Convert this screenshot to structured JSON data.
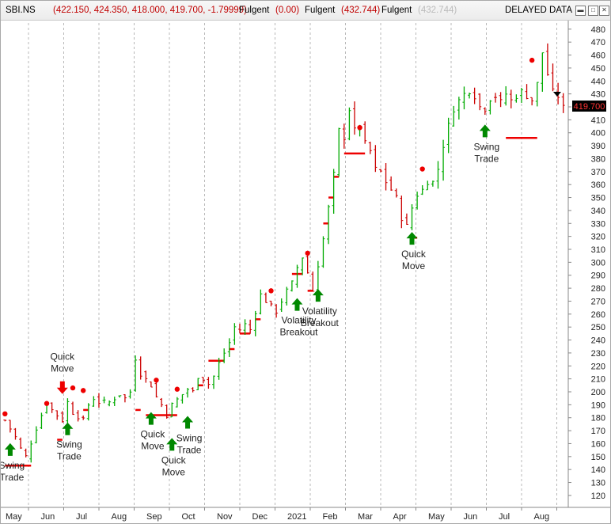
{
  "header": {
    "symbol": "SBI.NS",
    "ohlc": "(422.150, 424.350, 418.000, 419.700, -1.79999)",
    "ind1_name": "Fulgent",
    "ind1_value": "(0.00)",
    "ind2_name": "Fulgent",
    "ind2_value": "(432.744)",
    "ind3_name": "Fulgent",
    "ind3_value": "(432.744)",
    "delayed": "DELAYED DATA",
    "colors": {
      "symbol": "#000000",
      "ohlc": "#c00000",
      "ind2": "#c00000",
      "ind3": "#bbbbbb"
    }
  },
  "window_controls": {
    "minimize_icon": "minimize-icon",
    "maximize_icon": "maximize-icon",
    "close_icon": "close-icon"
  },
  "chart_data": {
    "type": "ohlc",
    "title": "SBI.NS",
    "last_price_label": "419.700",
    "y_ticks": [
      480,
      470,
      460,
      450,
      440,
      430,
      420,
      410,
      400,
      390,
      380,
      370,
      360,
      350,
      340,
      330,
      320,
      310,
      300,
      290,
      280,
      270,
      260,
      250,
      240,
      230,
      220,
      210,
      200,
      190,
      180,
      170,
      160,
      150,
      140,
      130,
      120
    ],
    "ylim": [
      112,
      486
    ],
    "x_labels": [
      "May",
      "Jun",
      "Jul",
      "Aug",
      "Sep",
      "Oct",
      "Nov",
      "Dec",
      "2021",
      "Feb",
      "Mar",
      "Apr",
      "May",
      "Jun",
      "Jul",
      "Aug"
    ],
    "grid": "vertical dashed",
    "colors": {
      "up": "#00aa00",
      "down": "#cc0000",
      "buy_arrow": "#008800",
      "sell_arrow": "#ee0000",
      "stop": "#ee0000",
      "last_bg": "#000000",
      "last_text": "#ff3333"
    },
    "series": [
      {
        "name": "price",
        "points": [
          [
            0,
            178
          ],
          [
            2,
            165
          ],
          [
            3,
            156
          ],
          [
            4,
            150
          ],
          [
            6,
            172
          ],
          [
            8,
            192
          ],
          [
            9,
            186
          ],
          [
            11,
            178
          ],
          [
            12,
            192
          ],
          [
            13,
            184
          ],
          [
            15,
            178
          ],
          [
            16,
            190
          ],
          [
            17,
            195
          ],
          [
            18,
            192
          ],
          [
            20,
            192
          ],
          [
            22,
            198
          ],
          [
            23,
            195
          ],
          [
            24,
            200
          ],
          [
            25,
            226
          ],
          [
            26,
            214
          ],
          [
            28,
            205
          ],
          [
            29,
            196
          ],
          [
            30,
            190
          ],
          [
            31,
            182
          ],
          [
            32,
            190
          ],
          [
            33,
            194
          ],
          [
            34,
            198
          ],
          [
            35,
            202
          ],
          [
            36,
            200
          ],
          [
            37,
            212
          ],
          [
            38,
            210
          ],
          [
            39,
            206
          ],
          [
            40,
            212
          ],
          [
            41,
            222
          ],
          [
            42,
            230
          ],
          [
            43,
            238
          ],
          [
            44,
            250
          ],
          [
            45,
            248
          ],
          [
            46,
            252
          ],
          [
            47,
            248
          ],
          [
            48,
            262
          ],
          [
            49,
            275
          ],
          [
            50,
            270
          ],
          [
            52,
            262
          ],
          [
            53,
            270
          ],
          [
            54,
            278
          ],
          [
            55,
            284
          ],
          [
            56,
            296
          ],
          [
            57,
            304
          ],
          [
            58,
            292
          ],
          [
            59,
            278
          ],
          [
            60,
            298
          ],
          [
            61,
            318
          ],
          [
            62,
            342
          ],
          [
            63,
            368
          ],
          [
            64,
            402
          ],
          [
            65,
            396
          ],
          [
            66,
            418
          ],
          [
            67,
            402
          ],
          [
            68,
            406
          ],
          [
            69,
            392
          ],
          [
            70,
            386
          ],
          [
            71,
            372
          ],
          [
            72,
            370
          ],
          [
            73,
            362
          ],
          [
            74,
            356
          ],
          [
            75,
            350
          ],
          [
            76,
            334
          ],
          [
            77,
            328
          ],
          [
            78,
            342
          ],
          [
            79,
            352
          ],
          [
            80,
            356
          ],
          [
            81,
            362
          ],
          [
            82,
            362
          ],
          [
            83,
            372
          ],
          [
            84,
            390
          ],
          [
            85,
            406
          ],
          [
            86,
            418
          ],
          [
            87,
            425
          ],
          [
            88,
            430
          ],
          [
            89,
            432
          ],
          [
            90,
            428
          ],
          [
            91,
            420
          ],
          [
            92,
            418
          ],
          [
            93,
            426
          ],
          [
            94,
            428
          ],
          [
            95,
            424
          ],
          [
            96,
            430
          ],
          [
            97,
            425
          ],
          [
            98,
            428
          ],
          [
            99,
            432
          ],
          [
            100,
            428
          ],
          [
            101,
            425
          ],
          [
            102,
            438
          ],
          [
            103,
            462
          ],
          [
            104,
            445
          ],
          [
            105,
            432
          ],
          [
            106,
            428
          ],
          [
            107,
            419.7
          ]
        ]
      }
    ],
    "stops": [
      {
        "x0": 0,
        "x1": 5,
        "y": 143
      },
      {
        "x0": 10,
        "x1": 11,
        "y": 163
      },
      {
        "x0": 15,
        "x1": 16,
        "y": 186
      },
      {
        "x0": 25,
        "x1": 26,
        "y": 186
      },
      {
        "x0": 27,
        "x1": 33,
        "y": 182
      },
      {
        "x0": 37,
        "x1": 38,
        "y": 205
      },
      {
        "x0": 39,
        "x1": 42,
        "y": 224
      },
      {
        "x0": 43,
        "x1": 44,
        "y": 233
      },
      {
        "x0": 45,
        "x1": 47,
        "y": 245
      },
      {
        "x0": 48,
        "x1": 49,
        "y": 256
      },
      {
        "x0": 55,
        "x1": 57,
        "y": 291
      },
      {
        "x0": 58,
        "x1": 59,
        "y": 278
      },
      {
        "x0": 61,
        "x1": 62,
        "y": 330
      },
      {
        "x0": 62,
        "x1": 63,
        "y": 350
      },
      {
        "x0": 63,
        "x1": 64,
        "y": 366
      },
      {
        "x0": 65,
        "x1": 69,
        "y": 384
      },
      {
        "x0": 78,
        "x1": 79,
        "y": 319
      },
      {
        "x0": 96,
        "x1": 102,
        "y": 396
      }
    ],
    "dots": [
      [
        0,
        183
      ],
      [
        8,
        191
      ],
      [
        13,
        203
      ],
      [
        15,
        201
      ],
      [
        29,
        209
      ],
      [
        33,
        202
      ],
      [
        51,
        278
      ],
      [
        58,
        307
      ],
      [
        68,
        404
      ],
      [
        80,
        372
      ],
      [
        101,
        456
      ]
    ],
    "signals": [
      {
        "type": "buy",
        "x": 1,
        "y": 153,
        "label": [
          "Swing",
          "Trade"
        ]
      },
      {
        "type": "sell",
        "x": 11,
        "y": 202,
        "label": [
          "Quick",
          "Move"
        ]
      },
      {
        "type": "buy",
        "x": 12,
        "y": 169,
        "label": [
          "Swing",
          "Trade"
        ]
      },
      {
        "type": "buy",
        "x": 28,
        "y": 177,
        "label": [
          "Quick",
          "Move"
        ]
      },
      {
        "type": "buy",
        "x": 32,
        "y": 157,
        "label": [
          "Quick",
          "Move"
        ]
      },
      {
        "type": "buy",
        "x": 35,
        "y": 174,
        "label": [
          "Swing",
          "Trade"
        ]
      },
      {
        "type": "buy",
        "x": 56,
        "y": 265,
        "label": [
          "Volatility",
          "Breakout"
        ]
      },
      {
        "type": "buy",
        "x": 60,
        "y": 272,
        "label": [
          "Volatility",
          "Breakout"
        ]
      },
      {
        "type": "buy",
        "x": 78,
        "y": 316,
        "label": [
          "Quick",
          "Move"
        ]
      },
      {
        "type": "buy",
        "x": 92,
        "y": 399,
        "label": [
          "Swing",
          "Trade"
        ]
      }
    ]
  }
}
